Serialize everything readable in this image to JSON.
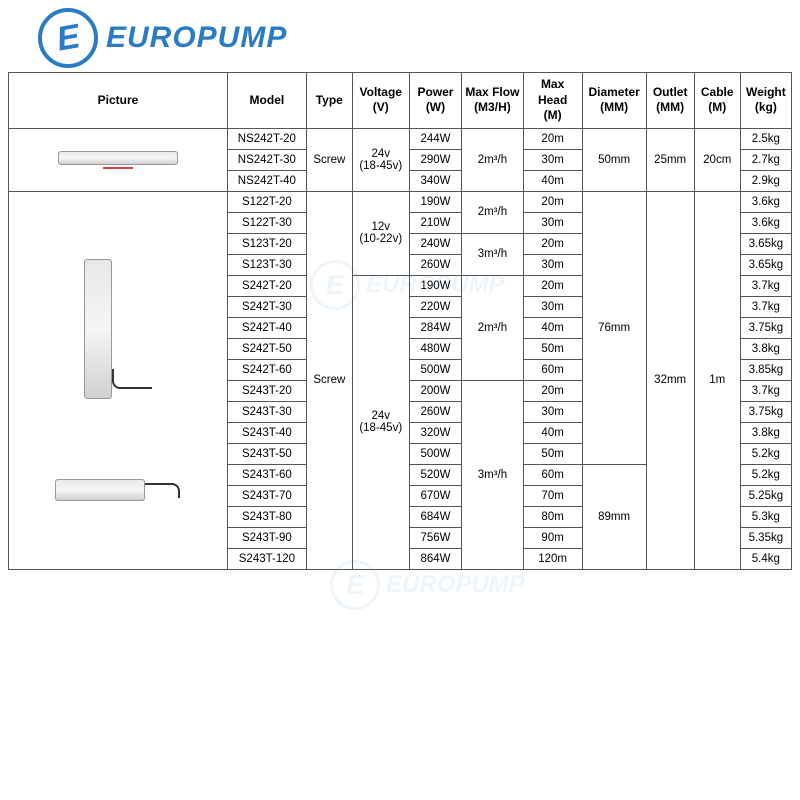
{
  "brand": "EUROPUMP",
  "headers": {
    "picture": "Picture",
    "model": "Model",
    "type": "Type",
    "voltage": "Voltage\n(V)",
    "power": "Power\n(W)",
    "maxflow": "Max Flow\n(M3/H)",
    "maxhead": "Max Head\n(M)",
    "diameter": "Diameter\n(MM)",
    "outlet": "Outlet\n(MM)",
    "cable": "Cable\n(M)",
    "weight": "Weight\n(kg)"
  },
  "group1": {
    "type": "Screw",
    "voltage": "24v\n(18-45v)",
    "maxflow": "2m³/h",
    "diameter": "50mm",
    "outlet": "25mm",
    "cable": "20cm",
    "rows": [
      {
        "model": "NS242T-20",
        "power": "244W",
        "maxhead": "20m",
        "weight": "2.5kg"
      },
      {
        "model": "NS242T-30",
        "power": "290W",
        "maxhead": "30m",
        "weight": "2.7kg"
      },
      {
        "model": "NS242T-40",
        "power": "340W",
        "maxhead": "40m",
        "weight": "2.9kg"
      }
    ]
  },
  "group2": {
    "type": "Screw",
    "diameter1": "76mm",
    "diameter2": "89mm",
    "outlet": "32mm",
    "cable": "1m",
    "voltage12": "12v\n(10-22v)",
    "voltage24": "24v\n(18-45v)",
    "flow2": "2m³/h",
    "flow3": "3m³/h",
    "block12_2": [
      {
        "model": "S122T-20",
        "power": "190W",
        "maxhead": "20m",
        "weight": "3.6kg"
      },
      {
        "model": "S122T-30",
        "power": "210W",
        "maxhead": "30m",
        "weight": "3.6kg"
      }
    ],
    "block12_3": [
      {
        "model": "S123T-20",
        "power": "240W",
        "maxhead": "20m",
        "weight": "3.65kg"
      },
      {
        "model": "S123T-30",
        "power": "260W",
        "maxhead": "30m",
        "weight": "3.65kg"
      }
    ],
    "block24_2": [
      {
        "model": "S242T-20",
        "power": "190W",
        "maxhead": "20m",
        "weight": "3.7kg"
      },
      {
        "model": "S242T-30",
        "power": "220W",
        "maxhead": "30m",
        "weight": "3.7kg"
      },
      {
        "model": "S242T-40",
        "power": "284W",
        "maxhead": "40m",
        "weight": "3.75kg"
      },
      {
        "model": "S242T-50",
        "power": "480W",
        "maxhead": "50m",
        "weight": "3.8kg"
      },
      {
        "model": "S242T-60",
        "power": "500W",
        "maxhead": "60m",
        "weight": "3.85kg"
      }
    ],
    "block24_3": [
      {
        "model": "S243T-20",
        "power": "200W",
        "maxhead": "20m",
        "weight": "3.7kg"
      },
      {
        "model": "S243T-30",
        "power": "260W",
        "maxhead": "30m",
        "weight": "3.75kg"
      },
      {
        "model": "S243T-40",
        "power": "320W",
        "maxhead": "40m",
        "weight": "3.8kg"
      },
      {
        "model": "S243T-50",
        "power": "500W",
        "maxhead": "50m",
        "weight": "5.2kg"
      },
      {
        "model": "S243T-60",
        "power": "520W",
        "maxhead": "60m",
        "weight": "5.2kg"
      },
      {
        "model": "S243T-70",
        "power": "670W",
        "maxhead": "70m",
        "weight": "5.25kg"
      },
      {
        "model": "S243T-80",
        "power": "684W",
        "maxhead": "80m",
        "weight": "5.3kg"
      },
      {
        "model": "S243T-90",
        "power": "756W",
        "maxhead": "90m",
        "weight": "5.35kg"
      },
      {
        "model": "S243T-120",
        "power": "864W",
        "maxhead": "120m",
        "weight": "5.4kg"
      }
    ]
  },
  "colors": {
    "brand": "#2b7cc4",
    "border": "#555555",
    "bg": "#ffffff"
  }
}
